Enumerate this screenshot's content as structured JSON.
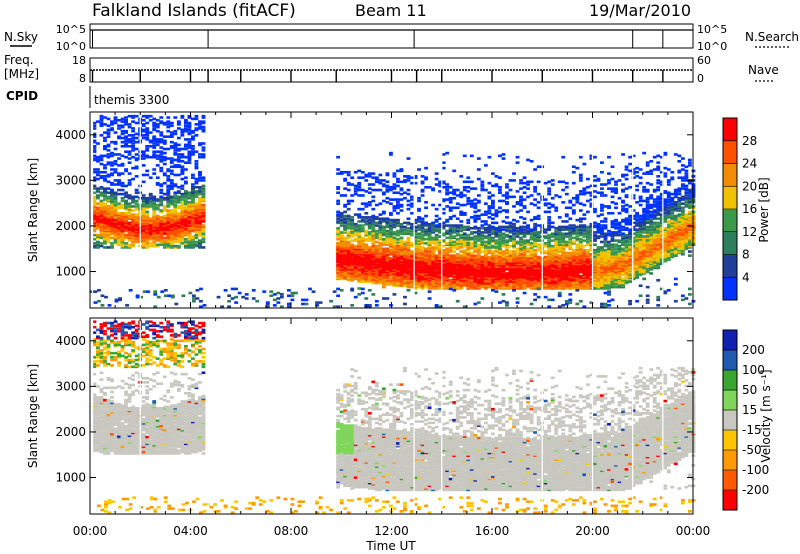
{
  "header": {
    "station": "Falkland Islands (fitACF)",
    "beam": "Beam 11",
    "date": "19/Mar/2010"
  },
  "panels": {
    "nsky_label": "N.Sky",
    "nsky_ticks": [
      "10^5",
      "10^0"
    ],
    "nsearch_label": "N.Search",
    "nsearch_ticks": [
      "10^5",
      "10^0"
    ],
    "freq_label_1": "Freq.",
    "freq_label_2": "[MHz]",
    "freq_ticks": [
      "18",
      "8"
    ],
    "nave_label": "Nave",
    "nave_ticks": [
      "60",
      "0"
    ],
    "cpid_label": "CPID",
    "cpid_value": "themis 3300"
  },
  "colors": {
    "power": [
      "#0033ff",
      "#1f3f9a",
      "#2e7d5b",
      "#3a9a4a",
      "#f2c200",
      "#f28c00",
      "#ff5000",
      "#ff0000"
    ],
    "velocity": [
      "#ff0000",
      "#ff5a00",
      "#ff9a00",
      "#ffc600",
      "#c8c8c0",
      "#7fd65a",
      "#3aa632",
      "#1d5ab0",
      "#1020b0"
    ],
    "ground": "#c8c8c0"
  },
  "chart_data": [
    {
      "type": "heatmap",
      "name": "power",
      "xlabel": "",
      "ylabel": "Slant Range [km]",
      "x_ticks": [
        "00:00",
        "04:00",
        "08:00",
        "12:00",
        "16:00",
        "20:00",
        "00:00"
      ],
      "y_ticks": [
        "4000",
        "3000",
        "2000",
        "1000"
      ],
      "ylim": [
        200,
        4500
      ],
      "colorbar_label": "Power [dB]",
      "colorbar_ticks": [
        "28",
        "24",
        "20",
        "16",
        "12",
        "8",
        "4"
      ]
    },
    {
      "type": "heatmap",
      "name": "velocity",
      "xlabel": "Time UT",
      "ylabel": "Slant Range [km]",
      "x_ticks": [
        "00:00",
        "04:00",
        "08:00",
        "12:00",
        "16:00",
        "20:00",
        "00:00"
      ],
      "y_ticks": [
        "4000",
        "3000",
        "2000",
        "1000"
      ],
      "ylim": [
        200,
        4500
      ],
      "colorbar_label": "Velocity [m s⁻¹]",
      "colorbar_ticks": [
        "200",
        "100",
        "50",
        "15",
        "-15",
        "-50",
        "-100",
        "-200"
      ]
    }
  ]
}
